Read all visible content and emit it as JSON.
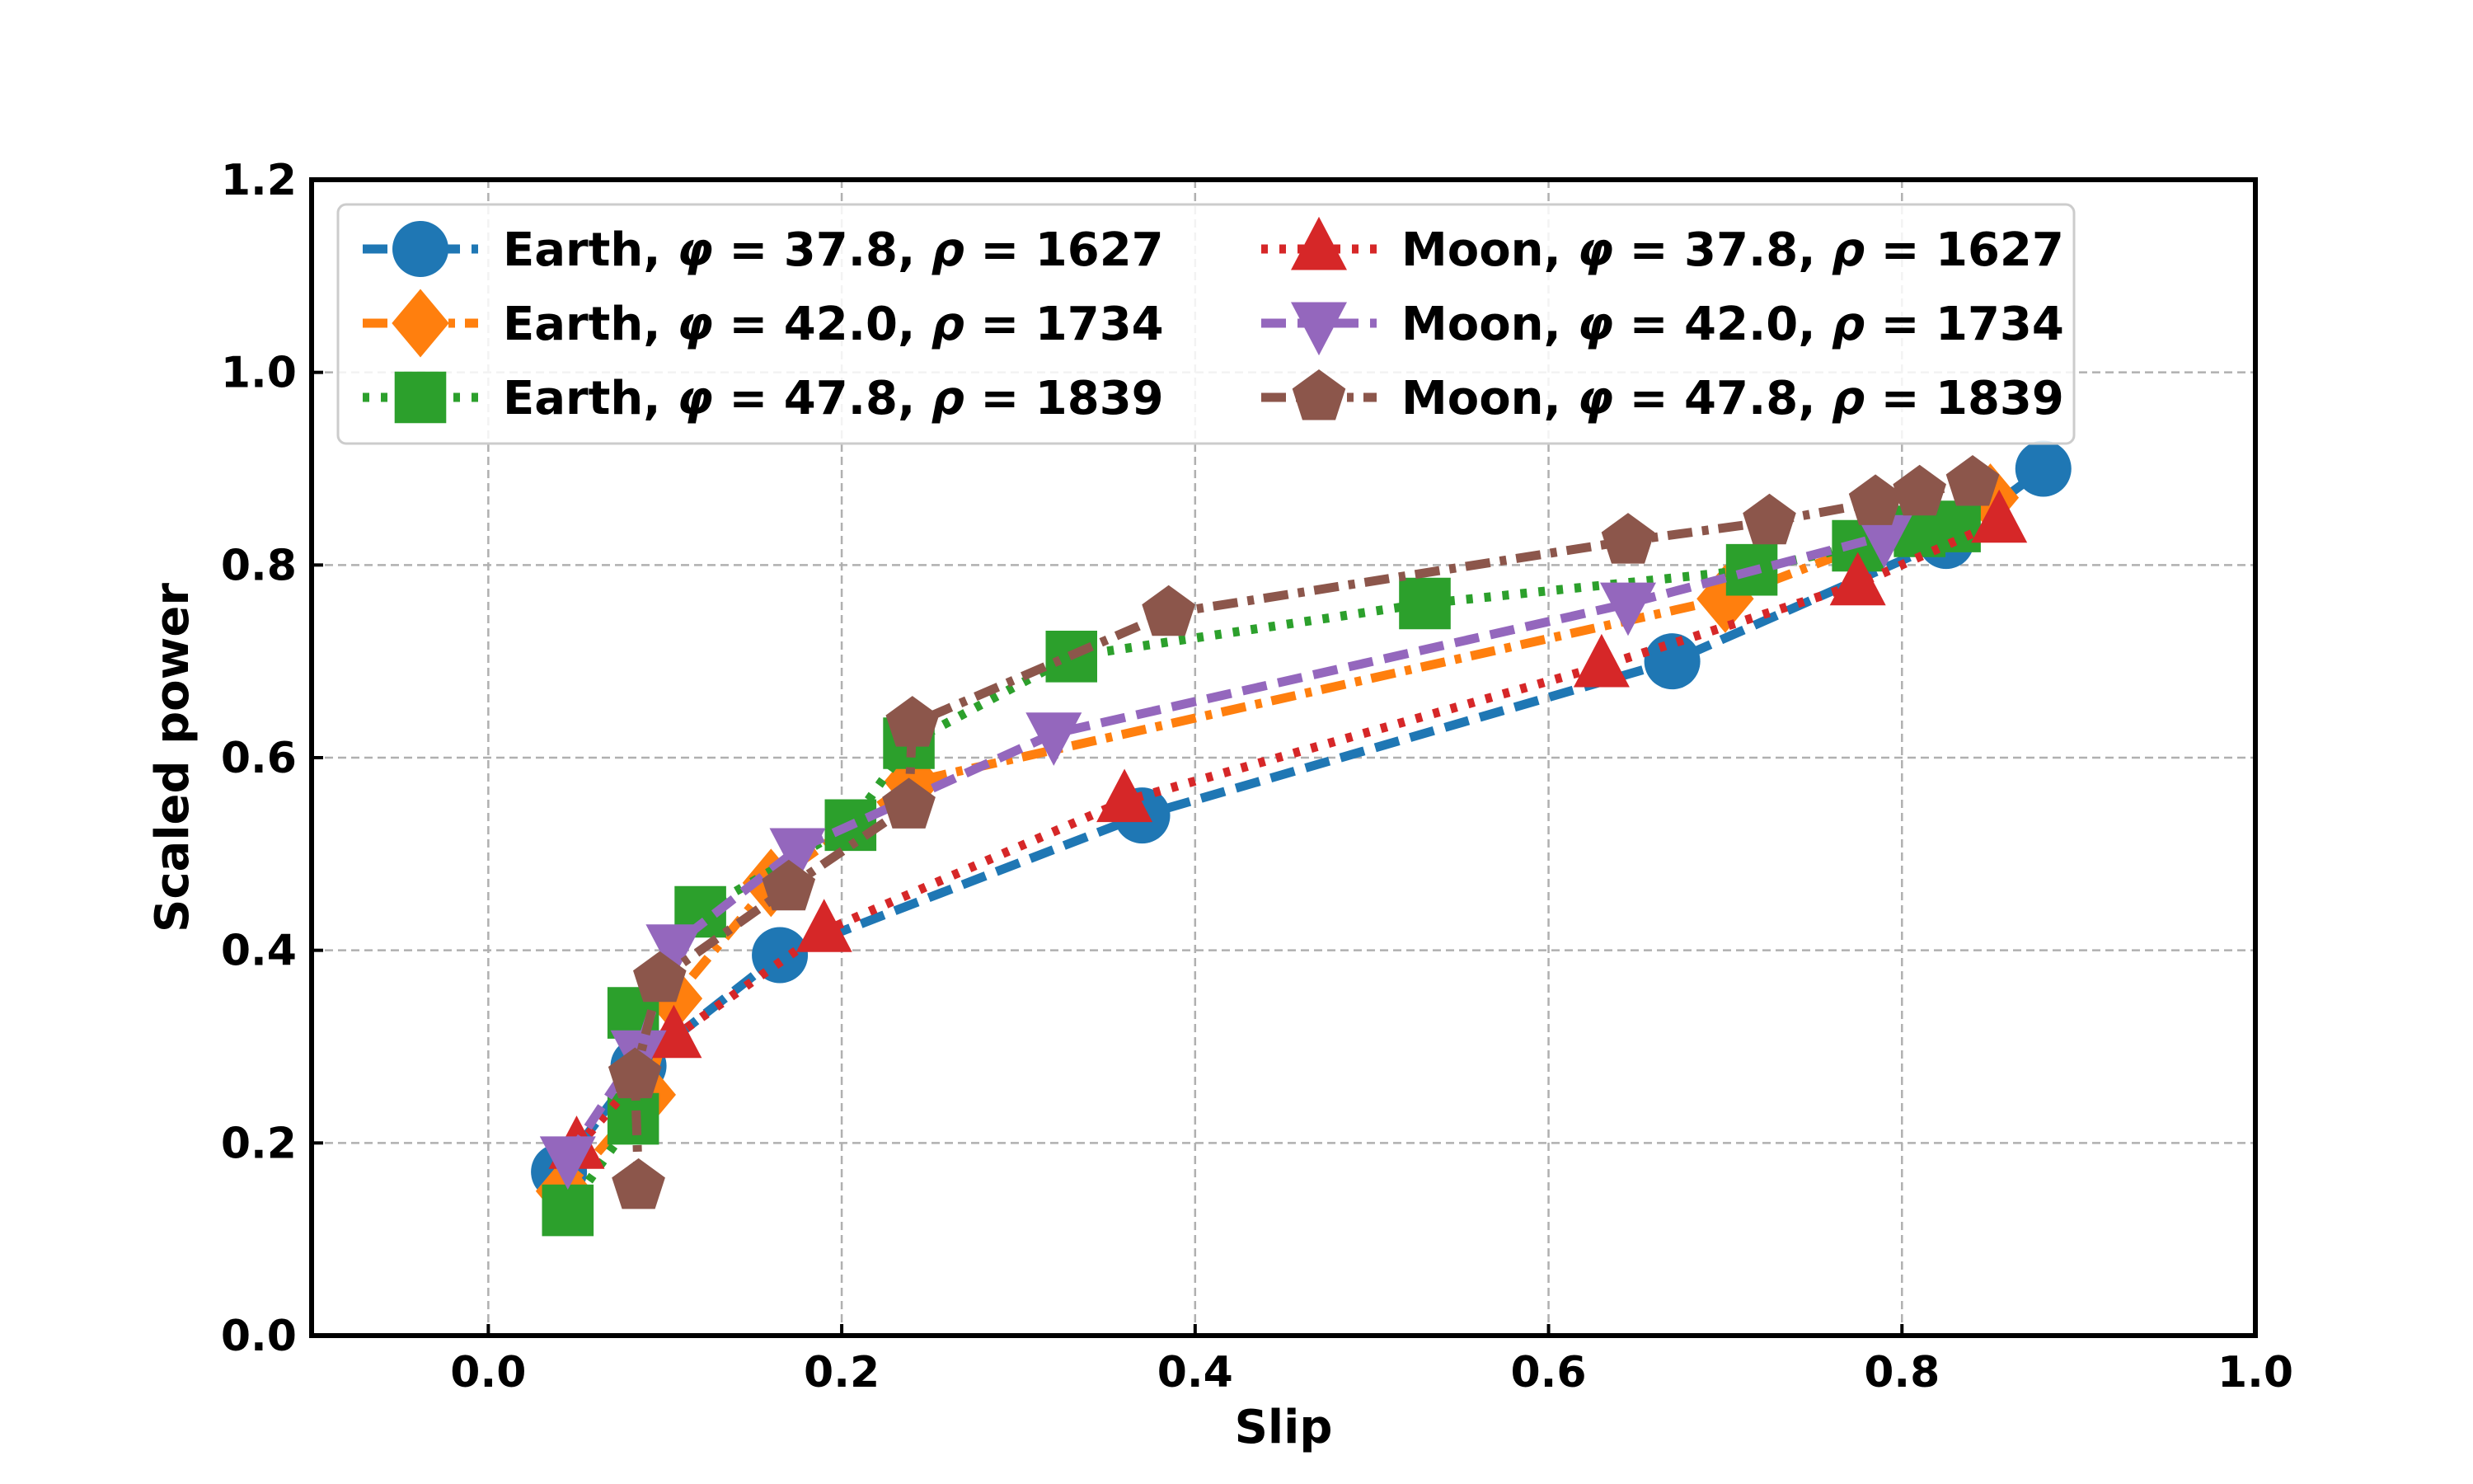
{
  "chart_data": {
    "type": "line",
    "title": "",
    "xlabel": "Slip",
    "ylabel": "Scaled power",
    "xlim": [
      -0.1,
      1.0
    ],
    "ylim": [
      0.0,
      1.2
    ],
    "xticks": [
      "0.0",
      "0.2",
      "0.4",
      "0.6",
      "0.8",
      "1.0"
    ],
    "xtick_values": [
      0.0,
      0.2,
      0.4,
      0.6,
      0.8,
      1.0
    ],
    "yticks": [
      "0.0",
      "0.2",
      "0.4",
      "0.6",
      "0.8",
      "1.0",
      "1.2"
    ],
    "ytick_values": [
      0.0,
      0.2,
      0.4,
      0.6,
      0.8,
      1.0,
      1.2
    ],
    "grid": true,
    "legend_position": "top-left",
    "series": [
      {
        "name": "Earth, φ = 37.8, ρ = 1627",
        "body": "Earth",
        "phi": "37.8",
        "rho": "1627",
        "color": "#1f77b4",
        "marker": "circle",
        "linestyle": "dashed",
        "x": [
          0.04,
          0.085,
          0.165,
          0.37,
          0.67,
          0.825,
          0.88
        ],
        "y": [
          0.17,
          0.28,
          0.395,
          0.54,
          0.7,
          0.825,
          0.9
        ]
      },
      {
        "name": "Earth, φ = 42.0, ρ = 1734",
        "body": "Earth",
        "phi": "42.0",
        "rho": "1734",
        "color": "#ff7f0e",
        "marker": "diamond",
        "linestyle": "dashdot",
        "x": [
          0.043,
          0.09,
          0.105,
          0.16,
          0.24,
          0.7,
          0.85
        ],
        "y": [
          0.15,
          0.25,
          0.35,
          0.47,
          0.575,
          0.765,
          0.87
        ]
      },
      {
        "name": "Earth, φ = 47.8, ρ = 1839",
        "body": "Earth",
        "phi": "47.8",
        "rho": "1839",
        "color": "#2ca02c",
        "marker": "square",
        "linestyle": "dotted",
        "x": [
          0.045,
          0.082,
          0.082,
          0.12,
          0.205,
          0.238,
          0.33,
          0.53,
          0.715,
          0.775,
          0.81,
          0.83
        ],
        "y": [
          0.13,
          0.225,
          0.335,
          0.44,
          0.53,
          0.615,
          0.705,
          0.76,
          0.795,
          0.82,
          0.835,
          0.84
        ]
      },
      {
        "name": "Moon, φ = 37.8, ρ = 1627",
        "body": "Moon",
        "phi": "37.8",
        "rho": "1627",
        "color": "#d62728",
        "marker": "triangle-up",
        "linestyle": "dotted",
        "x": [
          0.05,
          0.105,
          0.19,
          0.36,
          0.63,
          0.775,
          0.855
        ],
        "y": [
          0.195,
          0.31,
          0.42,
          0.555,
          0.695,
          0.78,
          0.845
        ]
      },
      {
        "name": "Moon, φ = 42.0, ρ = 1734",
        "body": "Moon",
        "phi": "42.0",
        "rho": "1734",
        "color": "#9467bd",
        "marker": "triangle-down",
        "linestyle": "dashed",
        "x": [
          0.045,
          0.085,
          0.105,
          0.175,
          0.32,
          0.645,
          0.79
        ],
        "y": [
          0.185,
          0.295,
          0.405,
          0.505,
          0.625,
          0.76,
          0.83
        ]
      },
      {
        "name": "Moon, φ = 47.8, ρ = 1839",
        "body": "Moon",
        "phi": "47.8",
        "rho": "1839",
        "color": "#8c564b",
        "marker": "pentagon",
        "linestyle": "dashdot",
        "x": [
          0.085,
          0.083,
          0.097,
          0.17,
          0.238,
          0.24,
          0.385,
          0.645,
          0.725,
          0.785,
          0.81,
          0.84
        ],
        "y": [
          0.155,
          0.27,
          0.37,
          0.465,
          0.55,
          0.635,
          0.75,
          0.825,
          0.845,
          0.865,
          0.875,
          0.885
        ]
      }
    ]
  }
}
